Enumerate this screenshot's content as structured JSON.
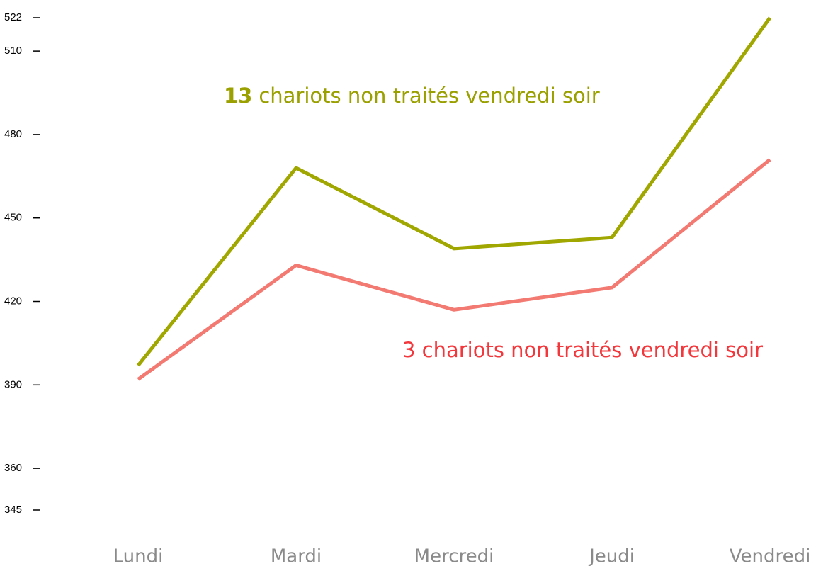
{
  "chart_data": {
    "type": "line",
    "categories": [
      "Lundi",
      "Mardi",
      "Mercredi",
      "Jeudi",
      "Vendredi"
    ],
    "series": [
      {
        "color": "#a0a700",
        "values": [
          397,
          468,
          439,
          443,
          522
        ]
      },
      {
        "color": "#f27a72",
        "values": [
          392,
          433,
          417,
          425,
          471
        ]
      }
    ],
    "ylim": [
      345,
      522
    ],
    "yticks": [
      345,
      360,
      390,
      420,
      450,
      480,
      510,
      522
    ],
    "annotations": [
      {
        "bold": "13",
        "text": "chariots non traités vendredi soir",
        "color": "#9aa000"
      },
      {
        "text": "3 chariots non traités vendredi soir",
        "color": "#f2383c"
      }
    ]
  }
}
